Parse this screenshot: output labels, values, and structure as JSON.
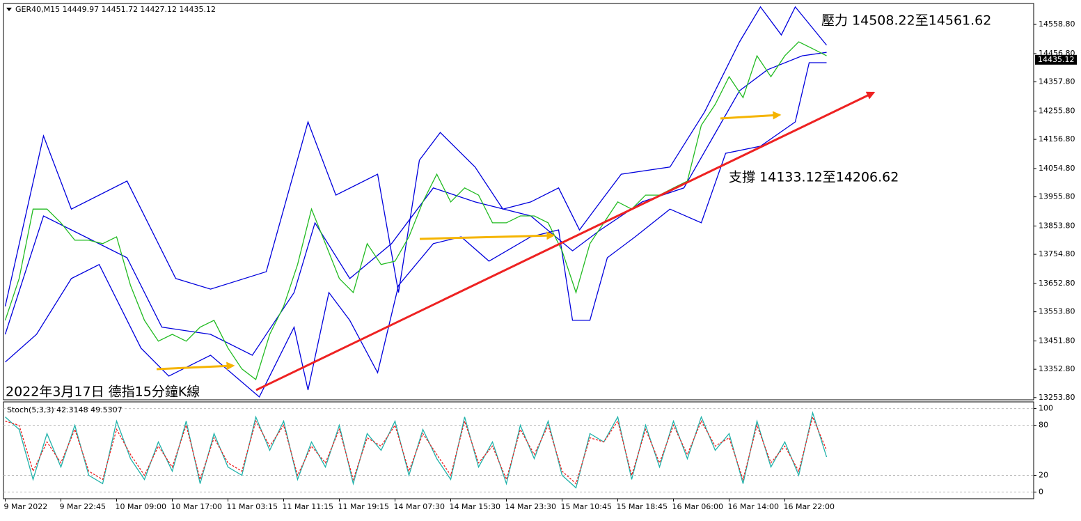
{
  "chart_data": [
    {
      "type": "line",
      "title": "GER40,M15  14449.97 14451.72 14427.12 14435.12",
      "xlim": [
        -1,
        591
      ],
      "ylim": [
        13246,
        14632
      ],
      "yticks": [
        {
          "value": 14558.8,
          "label": "14558.80"
        },
        {
          "value": 14456.8,
          "label": "14456.80"
        },
        {
          "value": 14357.8,
          "label": "14357.80"
        },
        {
          "value": 14255.8,
          "label": "14255.80"
        },
        {
          "value": 14156.8,
          "label": "14156.80"
        },
        {
          "value": 14054.8,
          "label": "14054.80"
        },
        {
          "value": 13955.8,
          "label": "13955.80"
        },
        {
          "value": 13853.8,
          "label": "13853.80"
        },
        {
          "value": 13754.8,
          "label": "13754.80"
        },
        {
          "value": 13652.8,
          "label": "13652.80"
        },
        {
          "value": 13553.8,
          "label": "13553.80"
        },
        {
          "value": 13451.8,
          "label": "13451.80"
        },
        {
          "value": 13352.8,
          "label": "13352.80"
        },
        {
          "value": 13253.8,
          "label": "13253.80"
        }
      ],
      "last_price": 14435.12,
      "series": [
        {
          "color": "#0000dd",
          "x": [
            0,
            22,
            38,
            70,
            98,
            118,
            150,
            174,
            190,
            214,
            226,
            238,
            250,
            270,
            286,
            302,
            318,
            330,
            342,
            354,
            382,
            402,
            422,
            434,
            446,
            454,
            472
          ],
          "values": [
            13573,
            14169,
            13913,
            14011,
            13670,
            13633,
            13694,
            14218,
            13962,
            14035,
            13621,
            14084,
            14181,
            14060,
            13913,
            13938,
            13987,
            13840,
            13938,
            14035,
            14060,
            14254,
            14498,
            14620,
            14522,
            14620,
            14486
          ]
        },
        {
          "color": "#0000dd",
          "x": [
            0,
            22,
            46,
            70,
            90,
            118,
            142,
            166,
            178,
            198,
            222,
            246,
            270,
            302,
            326,
            342,
            366,
            390,
            406,
            422,
            438,
            458,
            472
          ],
          "values": [
            13475,
            13889,
            13816,
            13743,
            13500,
            13475,
            13402,
            13621,
            13865,
            13670,
            13792,
            13987,
            13938,
            13889,
            13767,
            13840,
            13938,
            13987,
            14157,
            14327,
            14400,
            14449,
            14461
          ]
        },
        {
          "color": "#0000dd",
          "x": [
            0,
            18,
            38,
            54,
            78,
            94,
            118,
            146,
            166,
            174,
            186,
            198,
            214,
            226,
            246,
            262,
            278,
            302,
            318,
            326,
            336,
            346,
            362,
            382,
            400,
            414,
            434,
            454,
            462,
            472
          ],
          "values": [
            13378,
            13475,
            13670,
            13719,
            13427,
            13329,
            13402,
            13256,
            13500,
            13280,
            13621,
            13524,
            13341,
            13646,
            13792,
            13816,
            13731,
            13816,
            13840,
            13524,
            13524,
            13743,
            13816,
            13913,
            13865,
            14108,
            14133,
            14218,
            14425,
            14425
          ]
        },
        {
          "color": "#22bb22",
          "x": [
            0,
            8,
            16,
            24,
            32,
            40,
            48,
            56,
            64,
            72,
            80,
            88,
            96,
            104,
            112,
            120,
            128,
            136,
            144,
            152,
            160,
            168,
            176,
            184,
            192,
            200,
            208,
            216,
            224,
            232,
            240,
            248,
            256,
            264,
            272,
            280,
            288,
            296,
            304,
            312,
            320,
            328,
            336,
            344,
            352,
            360,
            368,
            376,
            384,
            392,
            400,
            408,
            416,
            424,
            432,
            440,
            448,
            456,
            464,
            472
          ],
          "values": [
            13524,
            13670,
            13913,
            13913,
            13865,
            13804,
            13804,
            13792,
            13816,
            13646,
            13524,
            13451,
            13475,
            13451,
            13500,
            13524,
            13427,
            13354,
            13317,
            13475,
            13573,
            13719,
            13913,
            13792,
            13670,
            13621,
            13792,
            13719,
            13731,
            13816,
            13938,
            14035,
            13938,
            13987,
            13962,
            13865,
            13865,
            13889,
            13889,
            13865,
            13767,
            13621,
            13792,
            13865,
            13938,
            13913,
            13962,
            13962,
            13987,
            14011,
            14206,
            14279,
            14376,
            14303,
            14449,
            14376,
            14449,
            14498,
            14474,
            14449
          ]
        }
      ],
      "annotations": [
        "壓力 14508.22至14561.62",
        "支撐 14133.12至14206.62",
        "2022年3月17日 德指15分鐘K線"
      ]
    },
    {
      "type": "line",
      "title": "Stoch(5,3,3) 42.3148 49.5307",
      "xlim": [
        -1,
        591
      ],
      "ylim": [
        -8,
        108
      ],
      "yticks": [
        100,
        80,
        20,
        0
      ],
      "grid": "dashed",
      "xticks": [
        {
          "value": 0,
          "label": "9 Mar 2022"
        },
        {
          "value": 32,
          "label": "9 Mar 22:45"
        },
        {
          "value": 64,
          "label": "10 Mar 09:00"
        },
        {
          "value": 96,
          "label": "10 Mar 17:00"
        },
        {
          "value": 128,
          "label": "11 Mar 03:15"
        },
        {
          "value": 160,
          "label": "11 Mar 11:15"
        },
        {
          "value": 192,
          "label": "11 Mar 19:15"
        },
        {
          "value": 224,
          "label": "14 Mar 07:30"
        },
        {
          "value": 256,
          "label": "14 Mar 15:30"
        },
        {
          "value": 288,
          "label": "14 Mar 23:30"
        },
        {
          "value": 320,
          "label": "15 Mar 10:45"
        },
        {
          "value": 352,
          "label": "15 Mar 18:45"
        },
        {
          "value": 384,
          "label": "16 Mar 06:00"
        },
        {
          "value": 416,
          "label": "16 Mar 14:00"
        },
        {
          "value": 448,
          "label": "16 Mar 22:00"
        }
      ],
      "series": [
        {
          "color": "#20b2aa",
          "dash": false,
          "x": [
            0,
            8,
            16,
            24,
            32,
            40,
            48,
            56,
            64,
            72,
            80,
            88,
            96,
            104,
            112,
            120,
            128,
            136,
            144,
            152,
            160,
            168,
            176,
            184,
            192,
            200,
            208,
            216,
            224,
            232,
            240,
            248,
            256,
            264,
            272,
            280,
            288,
            296,
            304,
            312,
            320,
            328,
            336,
            344,
            352,
            360,
            368,
            376,
            384,
            392,
            400,
            408,
            416,
            424,
            432,
            440,
            448,
            456,
            464,
            472
          ],
          "values": [
            90,
            75,
            15,
            70,
            30,
            80,
            20,
            10,
            85,
            40,
            15,
            60,
            25,
            85,
            10,
            70,
            30,
            20,
            90,
            50,
            85,
            15,
            60,
            30,
            80,
            10,
            70,
            50,
            85,
            20,
            75,
            40,
            15,
            90,
            30,
            60,
            10,
            80,
            40,
            85,
            20,
            5,
            70,
            60,
            90,
            15,
            80,
            30,
            85,
            40,
            90,
            50,
            70,
            10,
            85,
            30,
            60,
            20,
            95,
            42
          ]
        },
        {
          "color": "#ee2222",
          "dash": true,
          "x": [
            0,
            8,
            16,
            24,
            32,
            40,
            48,
            56,
            64,
            72,
            80,
            88,
            96,
            104,
            112,
            120,
            128,
            136,
            144,
            152,
            160,
            168,
            176,
            184,
            192,
            200,
            208,
            216,
            224,
            232,
            240,
            248,
            256,
            264,
            272,
            280,
            288,
            296,
            304,
            312,
            320,
            328,
            336,
            344,
            352,
            360,
            368,
            376,
            384,
            392,
            400,
            408,
            416,
            424,
            432,
            440,
            448,
            456,
            464,
            472
          ],
          "values": [
            85,
            80,
            25,
            60,
            35,
            75,
            25,
            15,
            75,
            45,
            20,
            55,
            30,
            80,
            15,
            65,
            35,
            25,
            85,
            55,
            80,
            20,
            55,
            35,
            75,
            15,
            65,
            55,
            80,
            25,
            70,
            45,
            20,
            85,
            35,
            55,
            15,
            75,
            45,
            80,
            25,
            10,
            65,
            60,
            85,
            20,
            75,
            35,
            80,
            45,
            85,
            55,
            65,
            15,
            80,
            35,
            55,
            25,
            90,
            50
          ]
        }
      ]
    }
  ]
}
